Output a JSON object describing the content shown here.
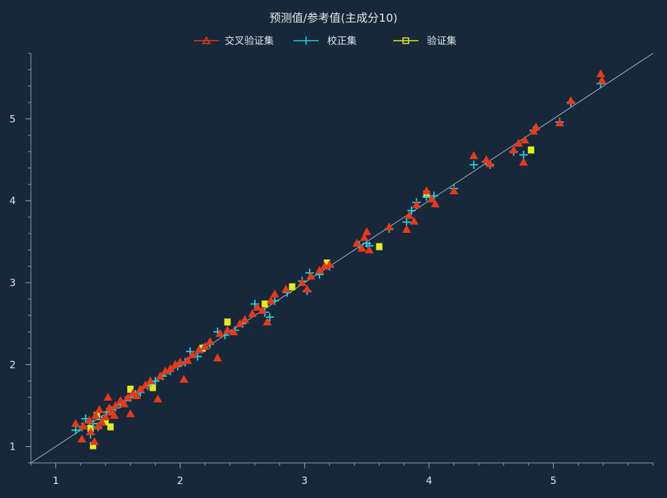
{
  "chart_data": {
    "type": "scatter",
    "title": "预测值/参考值(主成分10)",
    "xlabel": "",
    "ylabel": "",
    "xlim": [
      0.8,
      5.8
    ],
    "ylim": [
      0.8,
      5.8
    ],
    "x_ticks": [
      1,
      2,
      3,
      4,
      5
    ],
    "y_ticks": [
      1,
      2,
      3,
      4,
      5
    ],
    "grid": false,
    "legend_position": "top-center",
    "reference_line": {
      "from": [
        0.8,
        0.8
      ],
      "to": [
        5.8,
        5.8
      ],
      "color": "#a9b6c6"
    },
    "series": [
      {
        "name": "交叉验证集",
        "marker": "triangle",
        "color": "#e8381a",
        "points": [
          [
            1.16,
            1.28
          ],
          [
            1.21,
            1.09
          ],
          [
            1.22,
            1.25
          ],
          [
            1.27,
            1.32
          ],
          [
            1.28,
            1.18
          ],
          [
            1.31,
            1.06
          ],
          [
            1.32,
            1.38
          ],
          [
            1.34,
            1.25
          ],
          [
            1.35,
            1.45
          ],
          [
            1.37,
            1.3
          ],
          [
            1.4,
            1.36
          ],
          [
            1.42,
            1.6
          ],
          [
            1.43,
            1.47
          ],
          [
            1.45,
            1.42
          ],
          [
            1.47,
            1.38
          ],
          [
            1.48,
            1.5
          ],
          [
            1.52,
            1.56
          ],
          [
            1.55,
            1.52
          ],
          [
            1.58,
            1.6
          ],
          [
            1.6,
            1.4
          ],
          [
            1.62,
            1.65
          ],
          [
            1.65,
            1.62
          ],
          [
            1.68,
            1.7
          ],
          [
            1.72,
            1.75
          ],
          [
            1.76,
            1.8
          ],
          [
            1.82,
            1.58
          ],
          [
            1.84,
            1.86
          ],
          [
            1.88,
            1.92
          ],
          [
            1.92,
            1.95
          ],
          [
            1.96,
            2.0
          ],
          [
            2.0,
            2.03
          ],
          [
            2.03,
            1.82
          ],
          [
            2.06,
            2.05
          ],
          [
            2.1,
            2.12
          ],
          [
            2.15,
            2.18
          ],
          [
            2.2,
            2.22
          ],
          [
            2.24,
            2.28
          ],
          [
            2.3,
            2.08
          ],
          [
            2.32,
            2.38
          ],
          [
            2.38,
            2.42
          ],
          [
            2.43,
            2.4
          ],
          [
            2.48,
            2.5
          ],
          [
            2.52,
            2.55
          ],
          [
            2.58,
            2.62
          ],
          [
            2.62,
            2.7
          ],
          [
            2.66,
            2.66
          ],
          [
            2.7,
            2.52
          ],
          [
            2.73,
            2.78
          ],
          [
            2.76,
            2.86
          ],
          [
            2.85,
            2.92
          ],
          [
            2.98,
            3.0
          ],
          [
            3.02,
            2.92
          ],
          [
            3.05,
            3.08
          ],
          [
            3.12,
            3.15
          ],
          [
            3.16,
            3.2
          ],
          [
            3.2,
            3.22
          ],
          [
            3.42,
            3.48
          ],
          [
            3.46,
            3.42
          ],
          [
            3.48,
            3.55
          ],
          [
            3.5,
            3.62
          ],
          [
            3.52,
            3.4
          ],
          [
            3.68,
            3.68
          ],
          [
            3.82,
            3.65
          ],
          [
            3.84,
            3.82
          ],
          [
            3.88,
            3.75
          ],
          [
            3.9,
            3.95
          ],
          [
            3.98,
            4.12
          ],
          [
            4.02,
            4.02
          ],
          [
            4.05,
            3.96
          ],
          [
            4.2,
            4.12
          ],
          [
            4.36,
            4.55
          ],
          [
            4.46,
            4.5
          ],
          [
            4.49,
            4.45
          ],
          [
            4.68,
            4.62
          ],
          [
            4.72,
            4.7
          ],
          [
            4.76,
            4.47
          ],
          [
            4.77,
            4.74
          ],
          [
            4.84,
            4.85
          ],
          [
            4.86,
            4.9
          ],
          [
            5.05,
            4.95
          ],
          [
            5.14,
            5.22
          ],
          [
            5.38,
            5.55
          ],
          [
            5.39,
            5.47
          ]
        ]
      },
      {
        "name": "校正集",
        "marker": "plus",
        "color": "#1fd5e6",
        "points": [
          [
            1.16,
            1.2
          ],
          [
            1.21,
            1.24
          ],
          [
            1.24,
            1.34
          ],
          [
            1.28,
            1.15
          ],
          [
            1.3,
            1.28
          ],
          [
            1.34,
            1.24
          ],
          [
            1.37,
            1.33
          ],
          [
            1.41,
            1.42
          ],
          [
            1.44,
            1.45
          ],
          [
            1.48,
            1.48
          ],
          [
            1.52,
            1.52
          ],
          [
            1.56,
            1.56
          ],
          [
            1.6,
            1.6
          ],
          [
            1.64,
            1.64
          ],
          [
            1.68,
            1.66
          ],
          [
            1.74,
            1.74
          ],
          [
            1.8,
            1.8
          ],
          [
            1.86,
            1.86
          ],
          [
            1.92,
            1.92
          ],
          [
            1.98,
            1.98
          ],
          [
            2.04,
            2.03
          ],
          [
            2.08,
            2.16
          ],
          [
            2.14,
            2.1
          ],
          [
            2.18,
            2.2
          ],
          [
            2.24,
            2.25
          ],
          [
            2.3,
            2.4
          ],
          [
            2.36,
            2.36
          ],
          [
            2.44,
            2.42
          ],
          [
            2.5,
            2.5
          ],
          [
            2.6,
            2.74
          ],
          [
            2.68,
            2.64
          ],
          [
            2.72,
            2.58
          ],
          [
            2.76,
            2.78
          ],
          [
            2.86,
            2.88
          ],
          [
            2.98,
            3.02
          ],
          [
            3.02,
            2.9
          ],
          [
            3.04,
            3.12
          ],
          [
            3.12,
            3.1
          ],
          [
            3.2,
            3.2
          ],
          [
            3.44,
            3.46
          ],
          [
            3.5,
            3.48
          ],
          [
            3.52,
            3.45
          ],
          [
            3.68,
            3.66
          ],
          [
            3.82,
            3.74
          ],
          [
            3.86,
            3.88
          ],
          [
            3.9,
            3.98
          ],
          [
            3.98,
            4.05
          ],
          [
            4.04,
            4.06
          ],
          [
            4.2,
            4.15
          ],
          [
            4.36,
            4.44
          ],
          [
            4.46,
            4.48
          ],
          [
            4.49,
            4.44
          ],
          [
            4.68,
            4.6
          ],
          [
            4.76,
            4.56
          ],
          [
            4.84,
            4.86
          ],
          [
            5.05,
            4.96
          ],
          [
            5.14,
            5.2
          ],
          [
            5.38,
            5.43
          ]
        ]
      },
      {
        "name": "验证集",
        "marker": "square",
        "color": "#e4ee16",
        "points": [
          [
            1.28,
            1.22
          ],
          [
            1.3,
            1.01
          ],
          [
            1.33,
            1.38
          ],
          [
            1.4,
            1.3
          ],
          [
            1.44,
            1.24
          ],
          [
            1.6,
            1.7
          ],
          [
            1.78,
            1.72
          ],
          [
            2.18,
            2.2
          ],
          [
            2.38,
            2.52
          ],
          [
            2.68,
            2.74
          ],
          [
            2.9,
            2.95
          ],
          [
            3.18,
            3.24
          ],
          [
            3.6,
            3.44
          ],
          [
            3.98,
            4.08
          ],
          [
            4.82,
            4.62
          ]
        ]
      }
    ]
  }
}
